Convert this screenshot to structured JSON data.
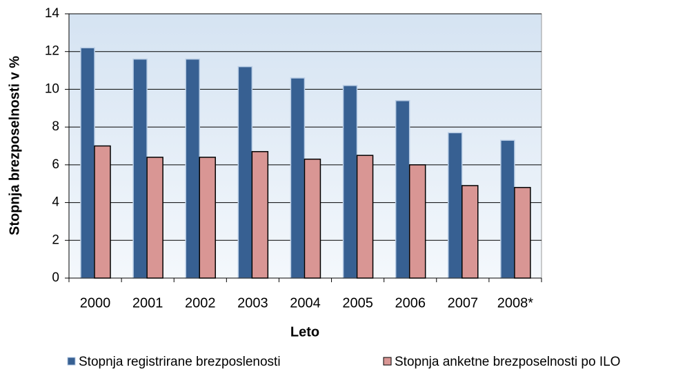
{
  "chart_data": {
    "type": "bar",
    "y_label": "Stopnja brezposelnosti v %",
    "x_label": "Leto",
    "categories": [
      "2000",
      "2001",
      "2002",
      "2003",
      "2004",
      "2005",
      "2006",
      "2007",
      "2008*"
    ],
    "series": [
      {
        "name": "Stopnja registrirane brezposlenosti",
        "color": "#376092",
        "values": [
          12.2,
          11.6,
          11.6,
          11.2,
          10.6,
          10.2,
          9.4,
          7.7,
          7.3
        ]
      },
      {
        "name": "Stopnja anketne brezposelnosti po ILO",
        "color": "#d99694",
        "values": [
          7.0,
          6.4,
          6.4,
          6.7,
          6.3,
          6.5,
          6.0,
          4.9,
          4.8
        ]
      }
    ],
    "ylim": [
      0,
      14
    ],
    "yticks": [
      0,
      2,
      4,
      6,
      8,
      10,
      12,
      14
    ],
    "grid": true,
    "legend": "bottom"
  }
}
